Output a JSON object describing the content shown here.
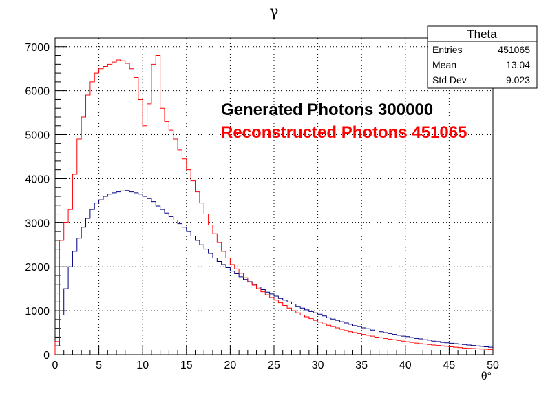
{
  "chart_data": {
    "type": "line",
    "title": "γ",
    "xlabel": "θ°",
    "ylabel": "",
    "xlim": [
      0,
      50
    ],
    "ylim": [
      0,
      7200
    ],
    "x_ticks": [
      0,
      5,
      10,
      15,
      20,
      25,
      30,
      35,
      40,
      45,
      50
    ],
    "y_ticks": [
      0,
      1000,
      2000,
      3000,
      4000,
      5000,
      6000,
      7000
    ],
    "grid": true,
    "x": [
      0.25,
      0.75,
      1.25,
      1.75,
      2.25,
      2.75,
      3.25,
      3.75,
      4.25,
      4.75,
      5.25,
      5.75,
      6.25,
      6.75,
      7.25,
      7.75,
      8.25,
      8.75,
      9.25,
      9.75,
      10.25,
      10.75,
      11.25,
      11.75,
      12.25,
      12.75,
      13.25,
      13.75,
      14.25,
      14.75,
      15.25,
      15.75,
      16.25,
      16.75,
      17.25,
      17.75,
      18.25,
      18.75,
      19.25,
      19.75,
      20.25,
      20.75,
      21.25,
      21.75,
      22.25,
      22.75,
      23.25,
      23.75,
      24.25,
      24.75,
      25.25,
      25.75,
      26.25,
      26.75,
      27.25,
      27.75,
      28.25,
      28.75,
      29.25,
      29.75,
      30.25,
      30.75,
      31.25,
      31.75,
      32.25,
      32.75,
      33.25,
      33.75,
      34.25,
      34.75,
      35.25,
      35.75,
      36.25,
      36.75,
      37.25,
      37.75,
      38.25,
      38.75,
      39.25,
      39.75,
      40.25,
      40.75,
      41.25,
      41.75,
      42.25,
      42.75,
      43.25,
      43.75,
      44.25,
      44.75,
      45.25,
      45.75,
      46.25,
      46.75,
      47.25,
      47.75,
      48.25,
      48.75,
      49.25,
      49.75
    ],
    "series": [
      {
        "color": "#000080",
        "values": [
          200,
          900,
          1500,
          2000,
          2350,
          2650,
          2900,
          3100,
          3300,
          3450,
          3520,
          3600,
          3650,
          3680,
          3700,
          3720,
          3730,
          3700,
          3680,
          3650,
          3600,
          3550,
          3480,
          3380,
          3300,
          3220,
          3140,
          3060,
          2980,
          2900,
          2800,
          2700,
          2600,
          2500,
          2400,
          2300,
          2200,
          2120,
          2050,
          1980,
          1900,
          1840,
          1770,
          1710,
          1660,
          1600,
          1540,
          1480,
          1420,
          1380,
          1330,
          1280,
          1240,
          1200,
          1150,
          1100,
          1060,
          1020,
          980,
          950,
          920,
          880,
          840,
          810,
          780,
          750,
          720,
          690,
          660,
          640,
          610,
          590,
          560,
          540,
          520,
          500,
          480,
          460,
          440,
          420,
          410,
          390,
          370,
          360,
          340,
          330,
          310,
          300,
          280,
          270,
          260,
          250,
          240,
          230,
          220,
          210,
          200,
          190,
          180,
          170
        ]
      },
      {
        "color": "#ff0000",
        "values": [
          300,
          2600,
          3000,
          3300,
          4100,
          4900,
          5400,
          5900,
          6200,
          6400,
          6500,
          6550,
          6600,
          6650,
          6700,
          6680,
          6620,
          6500,
          6300,
          5800,
          5200,
          5700,
          6600,
          6800,
          5600,
          5300,
          5100,
          4900,
          4650,
          4450,
          4200,
          3950,
          3700,
          3450,
          3200,
          2950,
          2750,
          2550,
          2350,
          2200,
          2050,
          1950,
          1850,
          1750,
          1650,
          1580,
          1500,
          1430,
          1360,
          1300,
          1240,
          1180,
          1120,
          1060,
          1000,
          950,
          900,
          860,
          820,
          780,
          740,
          700,
          670,
          640,
          610,
          580,
          550,
          520,
          500,
          480,
          460,
          440,
          420,
          400,
          385,
          370,
          355,
          340,
          325,
          310,
          295,
          280,
          265,
          250,
          240,
          230,
          220,
          210,
          200,
          190,
          180,
          170,
          160,
          150,
          145,
          140,
          135,
          130,
          125,
          120
        ]
      }
    ],
    "stats": {
      "name": "Theta",
      "rows": [
        {
          "label": "Entries",
          "value": "451065"
        },
        {
          "label": "Mean",
          "value": "13.04"
        },
        {
          "label": "Std Dev",
          "value": "9.023"
        }
      ]
    },
    "annotations": [
      {
        "text": "Generated Photons 300000",
        "color": "#000000"
      },
      {
        "text": "Reconstructed Photons 451065",
        "color": "#ff0000"
      }
    ]
  }
}
